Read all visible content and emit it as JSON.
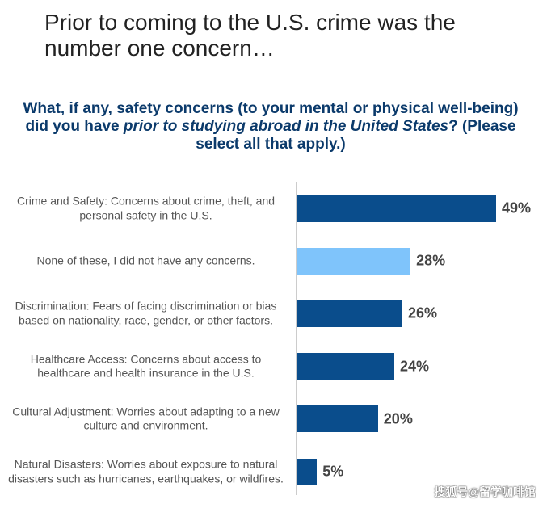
{
  "chart_data": {
    "type": "bar",
    "orientation": "horizontal",
    "title": "Prior to coming to the U.S. crime was the number one concern…",
    "subtitle": [
      "What, if any, safety concerns (to your mental or physical well-being) did you have ",
      "prior to studying abroad in the United States",
      "? (Please select all that apply.)"
    ],
    "categories": [
      "Crime and Safety: Concerns about crime, theft, and personal safety in the U.S.",
      "None of these, I did not have any concerns.",
      "Discrimination: Fears of facing discrimination or bias based on nationality, race, gender, or other factors.",
      "Healthcare Access: Concerns about access to healthcare and health insurance in the U.S.",
      "Cultural Adjustment: Worries about adapting to a new culture and environment.",
      "Natural Disasters: Worries about exposure to natural disasters such as hurricanes, earthquakes, or wildfires."
    ],
    "values": [
      49,
      28,
      26,
      24,
      20,
      5
    ],
    "value_labels": [
      "49%",
      "28%",
      "26%",
      "24%",
      "20%",
      "5%"
    ],
    "colors": [
      "#0a4d8c",
      "#7fc4fb",
      "#0a4d8c",
      "#0a4d8c",
      "#0a4d8c",
      "#0a4d8c"
    ],
    "watermark": "搜狐号@留学咖啡馆"
  }
}
